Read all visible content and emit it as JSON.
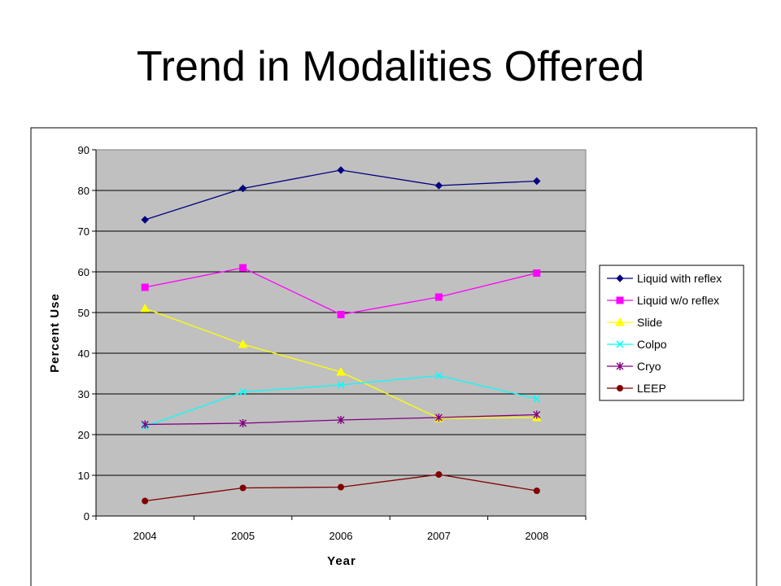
{
  "chart_data": {
    "type": "line",
    "title": "Trend in Modalities Offered",
    "xlabel": "Year",
    "ylabel": "Percent Use",
    "categories": [
      "2004",
      "2005",
      "2006",
      "2007",
      "2008"
    ],
    "ylim": [
      0,
      90
    ],
    "yticks": [
      0,
      10,
      20,
      30,
      40,
      50,
      60,
      70,
      80,
      90
    ],
    "grid": "horizontal",
    "legend": "right",
    "series": [
      {
        "name": "Liquid with reflex",
        "values": [
          72.8,
          80.5,
          85.0,
          81.2,
          82.3
        ],
        "color": "#000080",
        "marker": "diamond"
      },
      {
        "name": "Liquid w/o reflex",
        "values": [
          56.2,
          61.0,
          49.5,
          53.8,
          59.7
        ],
        "color": "#ff00ff",
        "marker": "square"
      },
      {
        "name": "Slide",
        "values": [
          51.0,
          42.2,
          35.4,
          24.0,
          24.2
        ],
        "color": "#ffff00",
        "marker": "triangle"
      },
      {
        "name": "Colpo",
        "values": [
          22.0,
          30.5,
          32.2,
          34.5,
          28.8
        ],
        "color": "#00ffff",
        "marker": "x"
      },
      {
        "name": "Cryo",
        "values": [
          22.5,
          22.8,
          23.6,
          24.2,
          24.9
        ],
        "color": "#800080",
        "marker": "star"
      },
      {
        "name": "LEEP",
        "values": [
          3.7,
          6.9,
          7.1,
          10.2,
          6.2
        ],
        "color": "#800000",
        "marker": "circle"
      }
    ]
  }
}
